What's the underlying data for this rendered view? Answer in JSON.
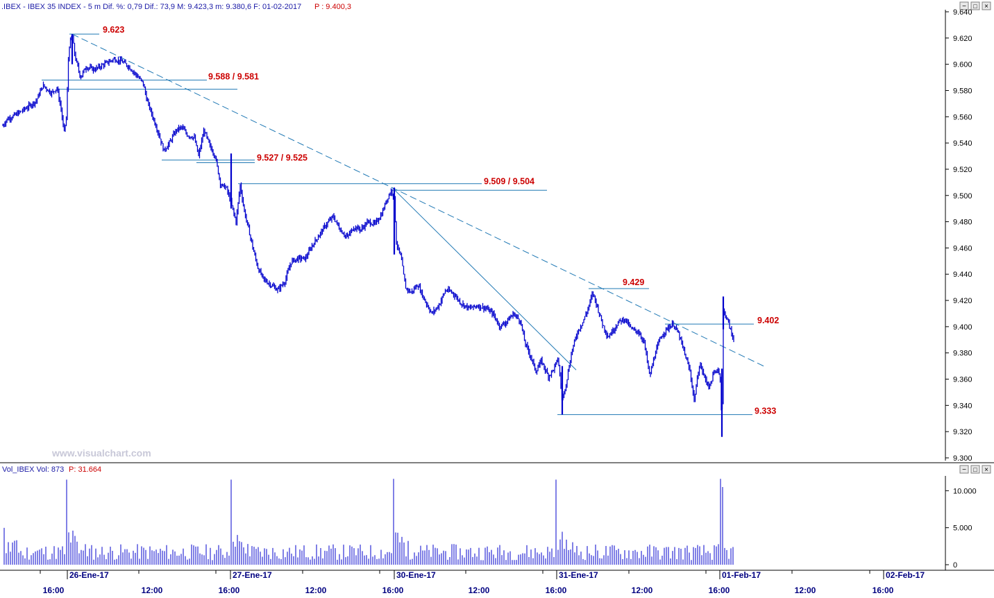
{
  "header": {
    "price_info": ".IBEX - IBEX 35 INDEX - 5 m  Dif. %: 0,79  Dif.: 73,9  M: 9.423,3  m: 9.380,6  F: 01-02-2017",
    "last_price": "P : 9.400,3"
  },
  "volume_header": {
    "label": "Vol_IBEX Vol: 873",
    "last_value": "P: 31.664"
  },
  "watermark": "www.visualchart.com",
  "window_buttons": [
    "−",
    "□",
    "×"
  ],
  "colors": {
    "candles": "#0000cc",
    "gridlines": "#000000",
    "trendlines": "#1f78b4",
    "annotations": "#cc0000",
    "header_text": "#1a1aa6",
    "axis_text": "#000000",
    "watermark": "#c8c8d8",
    "volume_bars": "#0000cc"
  },
  "chart_data": [
    {
      "type": "line",
      "description_of_series": "5-minute price bars, IBEX 35 index",
      "ylim": [
        9300,
        9640
      ],
      "y_ticks": [
        "9.640",
        "9.620",
        "9.600",
        "9.580",
        "9.560",
        "9.540",
        "9.520",
        "9.500",
        "9.480",
        "9.460",
        "9.440",
        "9.420",
        "9.400",
        "9.380",
        "9.360",
        "9.340",
        "9.320",
        "9.300"
      ],
      "x_day_labels": [
        "26-Ene-17",
        "27-Ene-17",
        "30-Ene-17",
        "31-Ene-17",
        "01-Feb-17",
        "02-Feb-17"
      ],
      "x_time_labels": [
        "16:00",
        "12:00",
        "16:00",
        "12:00",
        "16:00",
        "12:00",
        "16:00",
        "12:00",
        "16:00",
        "12:00",
        "16:00"
      ],
      "price_path": [
        [
          0,
          9550
        ],
        [
          10,
          9558
        ],
        [
          24,
          9562
        ],
        [
          36,
          9566
        ],
        [
          52,
          9572
        ],
        [
          62,
          9584
        ],
        [
          74,
          9578
        ],
        [
          82,
          9582
        ],
        [
          88,
          9566
        ],
        [
          92,
          9548
        ],
        [
          96,
          9560
        ],
        [
          98,
          9600
        ],
        [
          100,
          9614
        ],
        [
          104,
          9623
        ],
        [
          108,
          9606
        ],
        [
          116,
          9590
        ],
        [
          124,
          9598
        ],
        [
          136,
          9596
        ],
        [
          150,
          9600
        ],
        [
          164,
          9604
        ],
        [
          176,
          9602
        ],
        [
          186,
          9598
        ],
        [
          196,
          9592
        ],
        [
          206,
          9586
        ],
        [
          212,
          9572
        ],
        [
          220,
          9560
        ],
        [
          228,
          9548
        ],
        [
          236,
          9534
        ],
        [
          244,
          9540
        ],
        [
          254,
          9550
        ],
        [
          262,
          9552
        ],
        [
          270,
          9546
        ],
        [
          280,
          9544
        ],
        [
          286,
          9530
        ],
        [
          294,
          9550
        ],
        [
          302,
          9538
        ],
        [
          310,
          9530
        ],
        [
          318,
          9508
        ],
        [
          326,
          9506
        ],
        [
          334,
          9492
        ],
        [
          340,
          9480
        ],
        [
          346,
          9508
        ],
        [
          352,
          9488
        ],
        [
          360,
          9470
        ],
        [
          366,
          9456
        ],
        [
          372,
          9444
        ],
        [
          380,
          9436
        ],
        [
          390,
          9432
        ],
        [
          400,
          9428
        ],
        [
          410,
          9434
        ],
        [
          420,
          9450
        ],
        [
          430,
          9452
        ],
        [
          440,
          9452
        ],
        [
          450,
          9462
        ],
        [
          460,
          9470
        ],
        [
          470,
          9478
        ],
        [
          480,
          9484
        ],
        [
          490,
          9474
        ],
        [
          500,
          9468
        ],
        [
          510,
          9476
        ],
        [
          520,
          9474
        ],
        [
          530,
          9480
        ],
        [
          540,
          9478
        ],
        [
          550,
          9486
        ],
        [
          558,
          9498
        ],
        [
          564,
          9504
        ],
        [
          568,
          9498
        ],
        [
          571,
          9464
        ],
        [
          578,
          9452
        ],
        [
          584,
          9430
        ],
        [
          592,
          9426
        ],
        [
          602,
          9432
        ],
        [
          612,
          9420
        ],
        [
          622,
          9410
        ],
        [
          632,
          9416
        ],
        [
          642,
          9428
        ],
        [
          652,
          9426
        ],
        [
          664,
          9418
        ],
        [
          676,
          9414
        ],
        [
          688,
          9416
        ],
        [
          700,
          9414
        ],
        [
          710,
          9410
        ],
        [
          720,
          9400
        ],
        [
          730,
          9404
        ],
        [
          740,
          9410
        ],
        [
          750,
          9404
        ],
        [
          756,
          9388
        ],
        [
          764,
          9378
        ],
        [
          772,
          9366
        ],
        [
          780,
          9374
        ],
        [
          790,
          9362
        ],
        [
          798,
          9368
        ],
        [
          804,
          9376
        ],
        [
          810,
          9344
        ],
        [
          816,
          9358
        ],
        [
          824,
          9382
        ],
        [
          832,
          9396
        ],
        [
          840,
          9404
        ],
        [
          846,
          9412
        ],
        [
          854,
          9426
        ],
        [
          860,
          9416
        ],
        [
          868,
          9402
        ],
        [
          876,
          9392
        ],
        [
          884,
          9398
        ],
        [
          892,
          9404
        ],
        [
          900,
          9406
        ],
        [
          910,
          9398
        ],
        [
          920,
          9396
        ],
        [
          928,
          9388
        ],
        [
          936,
          9362
        ],
        [
          944,
          9380
        ],
        [
          952,
          9392
        ],
        [
          960,
          9398
        ],
        [
          970,
          9402
        ],
        [
          978,
          9394
        ],
        [
          986,
          9380
        ],
        [
          994,
          9366
        ],
        [
          1000,
          9344
        ],
        [
          1008,
          9372
        ],
        [
          1016,
          9360
        ],
        [
          1022,
          9354
        ],
        [
          1028,
          9364
        ],
        [
          1034,
          9368
        ],
        [
          1038,
          9360
        ],
        [
          1040,
          9318
        ],
        [
          1042,
          9412
        ],
        [
          1046,
          9408
        ],
        [
          1050,
          9402
        ],
        [
          1054,
          9394
        ],
        [
          1058,
          9390
        ]
      ],
      "annotations": [
        {
          "text": "9.623",
          "price": 9623
        },
        {
          "text": "9.588 / 9.581",
          "price": 9588
        },
        {
          "text": "9.527 / 9.525",
          "price": 9527
        },
        {
          "text": "9.509 / 9.504",
          "price": 9509
        },
        {
          "text": "9.429",
          "price": 9429
        },
        {
          "text": "9.402",
          "price": 9402
        },
        {
          "text": "9.333",
          "price": 9333
        }
      ],
      "horizontal_levels": [
        {
          "price": 9623,
          "x_from": 100,
          "x_to": 143
        },
        {
          "price": 9588,
          "x_from": 60,
          "x_to": 298
        },
        {
          "price": 9581,
          "x_from": 82,
          "x_to": 342
        },
        {
          "price": 9527,
          "x_from": 233,
          "x_to": 367
        },
        {
          "price": 9525,
          "x_from": 283,
          "x_to": 367
        },
        {
          "price": 9509,
          "x_from": 343,
          "x_to": 694
        },
        {
          "price": 9504,
          "x_from": 565,
          "x_to": 788
        },
        {
          "price": 9429,
          "x_from": 848,
          "x_to": 935
        },
        {
          "price": 9402,
          "x_from": 958,
          "x_to": 1086
        },
        {
          "price": 9333,
          "x_from": 803,
          "x_to": 1084
        }
      ],
      "trendlines": [
        {
          "style": "dashed",
          "x1": 104,
          "p1": 9623,
          "x2": 1100,
          "p2": 9370
        },
        {
          "style": "solid",
          "x1": 565,
          "p1": 9506,
          "x2": 830,
          "p2": 9367
        }
      ]
    },
    {
      "type": "bar",
      "description_of_series": "Volume",
      "ylim": [
        0,
        12000
      ],
      "y_ticks": [
        "10.000",
        "5.000",
        "0"
      ],
      "spikes": [
        {
          "x": 97,
          "value": 11500
        },
        {
          "x": 332,
          "value": 11500
        },
        {
          "x": 568,
          "value": 11600
        },
        {
          "x": 802,
          "value": 11500
        },
        {
          "x": 1037,
          "value": 11600
        },
        {
          "x": 1040,
          "value": 10500
        }
      ],
      "typical_range": [
        600,
        2800
      ]
    }
  ]
}
